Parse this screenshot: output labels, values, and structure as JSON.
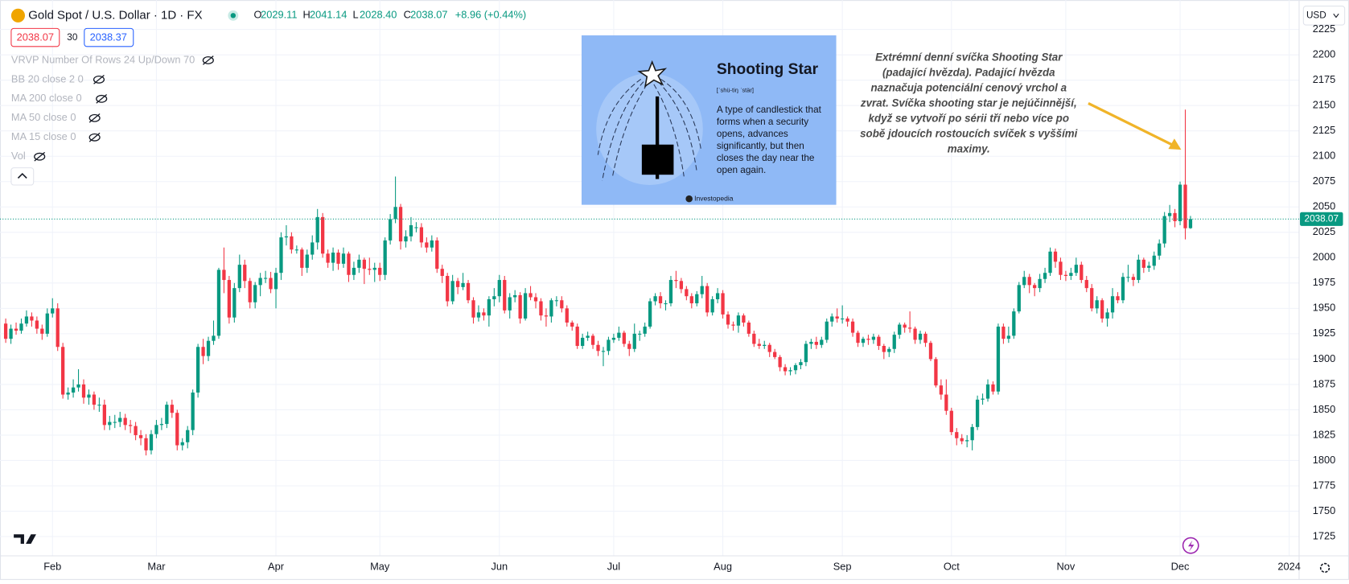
{
  "header": {
    "title": "Gold Spot / U.S. Dollar · 1D · FX",
    "legend": [
      {
        "key": "O",
        "value": "2029.11"
      },
      {
        "key": "H",
        "value": "2041.14"
      },
      {
        "key": "L",
        "value": "2028.40"
      },
      {
        "key": "C",
        "value": "2038.07"
      }
    ],
    "change": "+8.96 (+0.44%)"
  },
  "badges": {
    "sell": "2038.07",
    "spread": "30",
    "buy": "2038.37"
  },
  "indicators": [
    "VRVP Number Of Rows 24 Up/Down 70",
    "BB 20 close 2 0",
    "MA 200 close 0",
    "MA 50 close 0",
    "MA 15 close 0",
    "Vol"
  ],
  "currency": "USD",
  "card": {
    "title": "Shooting Star",
    "pronunciation": "[ˈshü-tiŋ ˈstär]",
    "description": [
      "A type of candlestick that",
      "forms when a security",
      "opens, advances",
      "significantly, but then",
      "closes the day near the",
      "open again."
    ],
    "source": "Investopedia"
  },
  "annotation": [
    "Extrémní denní svíčka Shooting Star",
    "(padající hvězda). Padající hvězda",
    "naznačuja potenciální cenový vrchol a",
    "zvrat. Svíčka shooting star je nejúčinnější,",
    "když se vytvoří po sérii tří nebo více po",
    "sobě jdoucích rostoucích svíček s vyššími",
    "maximy."
  ],
  "chart_data": {
    "type": "candlestick",
    "up_color": "#089981",
    "down_color": "#f23645",
    "grid": true,
    "ylim": [
      1706,
      2254
    ],
    "yticks": [
      1725,
      1750,
      1775,
      1800,
      1825,
      1850,
      1875,
      1900,
      1925,
      1950,
      1975,
      2000,
      2025,
      2050,
      2075,
      2100,
      2125,
      2150,
      2175,
      2200,
      2225
    ],
    "xlim": [
      -1.1,
      248.9
    ],
    "xticks": [
      {
        "value": 9,
        "label": "Feb"
      },
      {
        "value": 29,
        "label": "Mar"
      },
      {
        "value": 52,
        "label": "Apr"
      },
      {
        "value": 72,
        "label": "May"
      },
      {
        "value": 95,
        "label": "Jun"
      },
      {
        "value": 117,
        "label": "Jul"
      },
      {
        "value": 138,
        "label": "Aug"
      },
      {
        "value": 161,
        "label": "Sep"
      },
      {
        "value": 182,
        "label": "Oct"
      },
      {
        "value": 204,
        "label": "Nov"
      },
      {
        "value": 226,
        "label": "Dec"
      },
      {
        "value": 247,
        "label": "2024"
      }
    ],
    "ohlc": [
      [
        1935,
        1940,
        1916,
        1920
      ],
      [
        1920,
        1934,
        1915,
        1930
      ],
      [
        1930,
        1936,
        1924,
        1928
      ],
      [
        1928,
        1940,
        1925,
        1935
      ],
      [
        1935,
        1948,
        1932,
        1942
      ],
      [
        1942,
        1946,
        1932,
        1938
      ],
      [
        1938,
        1942,
        1925,
        1930
      ],
      [
        1930,
        1934,
        1919,
        1925
      ],
      [
        1925,
        1950,
        1922,
        1945
      ],
      [
        1945,
        1960,
        1941,
        1950
      ],
      [
        1950,
        1955,
        1908,
        1912
      ],
      [
        1912,
        1916,
        1861,
        1865
      ],
      [
        1865,
        1872,
        1860,
        1867
      ],
      [
        1867,
        1880,
        1862,
        1872
      ],
      [
        1872,
        1890,
        1868,
        1875
      ],
      [
        1875,
        1880,
        1856,
        1862
      ],
      [
        1862,
        1870,
        1855,
        1865
      ],
      [
        1865,
        1868,
        1850,
        1855
      ],
      [
        1855,
        1862,
        1848,
        1855
      ],
      [
        1855,
        1860,
        1830,
        1835
      ],
      [
        1835,
        1844,
        1830,
        1838
      ],
      [
        1838,
        1845,
        1832,
        1838
      ],
      [
        1838,
        1848,
        1833,
        1842
      ],
      [
        1842,
        1846,
        1830,
        1835
      ],
      [
        1835,
        1840,
        1827,
        1834
      ],
      [
        1834,
        1838,
        1820,
        1825
      ],
      [
        1825,
        1830,
        1815,
        1822
      ],
      [
        1822,
        1826,
        1805,
        1810
      ],
      [
        1810,
        1830,
        1806,
        1826
      ],
      [
        1826,
        1840,
        1822,
        1835
      ],
      [
        1835,
        1842,
        1830,
        1836
      ],
      [
        1836,
        1858,
        1832,
        1855
      ],
      [
        1855,
        1860,
        1842,
        1847
      ],
      [
        1847,
        1850,
        1810,
        1815
      ],
      [
        1815,
        1822,
        1810,
        1818
      ],
      [
        1818,
        1834,
        1812,
        1830
      ],
      [
        1830,
        1870,
        1825,
        1867
      ],
      [
        1867,
        1915,
        1862,
        1912
      ],
      [
        1912,
        1920,
        1895,
        1903
      ],
      [
        1903,
        1922,
        1898,
        1918
      ],
      [
        1918,
        1938,
        1914,
        1923
      ],
      [
        1923,
        1990,
        1920,
        1988
      ],
      [
        1988,
        2010,
        1965,
        1978
      ],
      [
        1978,
        1982,
        1935,
        1941
      ],
      [
        1941,
        1975,
        1936,
        1970
      ],
      [
        1970,
        2003,
        1966,
        1993
      ],
      [
        1993,
        1998,
        1970,
        1977
      ],
      [
        1977,
        1980,
        1950,
        1956
      ],
      [
        1956,
        1976,
        1950,
        1973
      ],
      [
        1973,
        1985,
        1962,
        1980
      ],
      [
        1980,
        1987,
        1975,
        1980
      ],
      [
        1980,
        1986,
        1965,
        1969
      ],
      [
        1969,
        1990,
        1950,
        1985
      ],
      [
        1985,
        2025,
        1978,
        2020
      ],
      [
        2020,
        2032,
        2012,
        2021
      ],
      [
        2021,
        2025,
        2004,
        2008
      ],
      [
        2008,
        2012,
        2004,
        2008
      ],
      [
        2008,
        2010,
        1982,
        1990
      ],
      [
        1990,
        2008,
        1985,
        2003
      ],
      [
        2003,
        2022,
        1998,
        2015
      ],
      [
        2015,
        2048,
        2008,
        2040
      ],
      [
        2040,
        2044,
        2000,
        2004
      ],
      [
        2004,
        2008,
        1990,
        1995
      ],
      [
        1995,
        2010,
        1987,
        2005
      ],
      [
        2005,
        2008,
        1988,
        1994
      ],
      [
        1994,
        2010,
        1990,
        2004
      ],
      [
        2004,
        2006,
        1976,
        1983
      ],
      [
        1983,
        1996,
        1978,
        1990
      ],
      [
        1990,
        2003,
        1985,
        1998
      ],
      [
        1998,
        2000,
        1974,
        1989
      ],
      [
        1989,
        2000,
        1983,
        1988
      ],
      [
        1988,
        1995,
        1976,
        1990
      ],
      [
        1990,
        1995,
        1977,
        1983
      ],
      [
        1983,
        2020,
        1978,
        2017
      ],
      [
        2017,
        2043,
        2013,
        2038
      ],
      [
        2038,
        2080,
        2034,
        2050
      ],
      [
        2050,
        2053,
        2008,
        2016
      ],
      [
        2016,
        2027,
        2010,
        2021
      ],
      [
        2021,
        2040,
        2016,
        2032
      ],
      [
        2030,
        2035,
        2025,
        2030
      ],
      [
        2030,
        2034,
        2010,
        2015
      ],
      [
        2015,
        2020,
        2005,
        2010
      ],
      [
        2010,
        2022,
        2006,
        2017
      ],
      [
        2017,
        2020,
        1985,
        1989
      ],
      [
        1989,
        1993,
        1975,
        1982
      ],
      [
        1982,
        1985,
        1952,
        1957
      ],
      [
        1957,
        1983,
        1954,
        1977
      ],
      [
        1977,
        1980,
        1964,
        1971
      ],
      [
        1971,
        1985,
        1968,
        1975
      ],
      [
        1975,
        1978,
        1955,
        1958
      ],
      [
        1958,
        1961,
        1935,
        1941
      ],
      [
        1941,
        1953,
        1937,
        1946
      ],
      [
        1946,
        1950,
        1938,
        1943
      ],
      [
        1943,
        1962,
        1932,
        1959
      ],
      [
        1959,
        1970,
        1952,
        1962
      ],
      [
        1962,
        1983,
        1956,
        1978
      ],
      [
        1978,
        1982,
        1945,
        1948
      ],
      [
        1948,
        1965,
        1940,
        1961
      ],
      [
        1961,
        1968,
        1956,
        1963
      ],
      [
        1963,
        1966,
        1935,
        1940
      ],
      [
        1940,
        1970,
        1938,
        1965
      ],
      [
        1965,
        1972,
        1958,
        1961
      ],
      [
        1961,
        1965,
        1950,
        1957
      ],
      [
        1957,
        1960,
        1938,
        1943
      ],
      [
        1943,
        1950,
        1932,
        1942
      ],
      [
        1942,
        1960,
        1936,
        1958
      ],
      [
        1958,
        1962,
        1952,
        1958
      ],
      [
        1958,
        1962,
        1946,
        1950
      ],
      [
        1950,
        1953,
        1932,
        1936
      ],
      [
        1936,
        1938,
        1928,
        1932
      ],
      [
        1932,
        1935,
        1910,
        1913
      ],
      [
        1913,
        1925,
        1910,
        1921
      ],
      [
        1921,
        1927,
        1918,
        1923
      ],
      [
        1923,
        1925,
        1910,
        1914
      ],
      [
        1914,
        1918,
        1903,
        1908
      ],
      [
        1908,
        1912,
        1893,
        1908
      ],
      [
        1908,
        1922,
        1904,
        1919
      ],
      [
        1919,
        1925,
        1916,
        1921
      ],
      [
        1921,
        1932,
        1918,
        1926
      ],
      [
        1926,
        1928,
        1912,
        1915
      ],
      [
        1915,
        1918,
        1903,
        1910
      ],
      [
        1910,
        1935,
        1907,
        1925
      ],
      [
        1925,
        1928,
        1918,
        1925
      ],
      [
        1925,
        1936,
        1922,
        1932
      ],
      [
        1932,
        1960,
        1930,
        1957
      ],
      [
        1957,
        1965,
        1953,
        1962
      ],
      [
        1962,
        1966,
        1950,
        1955
      ],
      [
        1955,
        1958,
        1948,
        1955
      ],
      [
        1955,
        1982,
        1952,
        1978
      ],
      [
        1978,
        1987,
        1970,
        1977
      ],
      [
        1977,
        1980,
        1965,
        1969
      ],
      [
        1969,
        1972,
        1958,
        1962
      ],
      [
        1962,
        1965,
        1950,
        1955
      ],
      [
        1955,
        1967,
        1952,
        1964
      ],
      [
        1964,
        1982,
        1960,
        1972
      ],
      [
        1972,
        1975,
        1942,
        1946
      ],
      [
        1946,
        1962,
        1943,
        1959
      ],
      [
        1959,
        1970,
        1955,
        1965
      ],
      [
        1965,
        1968,
        1940,
        1944
      ],
      [
        1944,
        1947,
        1930,
        1934
      ],
      [
        1934,
        1937,
        1928,
        1933
      ],
      [
        1933,
        1946,
        1926,
        1943
      ],
      [
        1943,
        1945,
        1932,
        1936
      ],
      [
        1936,
        1938,
        1922,
        1925
      ],
      [
        1925,
        1928,
        1912,
        1915
      ],
      [
        1915,
        1920,
        1910,
        1913
      ],
      [
        1913,
        1918,
        1910,
        1914
      ],
      [
        1914,
        1916,
        1902,
        1907
      ],
      [
        1907,
        1910,
        1900,
        1902
      ],
      [
        1902,
        1904,
        1888,
        1892
      ],
      [
        1892,
        1895,
        1884,
        1888
      ],
      [
        1888,
        1892,
        1884,
        1889
      ],
      [
        1889,
        1896,
        1885,
        1894
      ],
      [
        1894,
        1900,
        1890,
        1897
      ],
      [
        1897,
        1918,
        1893,
        1915
      ],
      [
        1915,
        1920,
        1910,
        1917
      ],
      [
        1917,
        1922,
        1910,
        1914
      ],
      [
        1914,
        1922,
        1911,
        1919
      ],
      [
        1919,
        1940,
        1916,
        1937
      ],
      [
        1937,
        1945,
        1932,
        1942
      ],
      [
        1942,
        1950,
        1936,
        1940
      ],
      [
        1940,
        1953,
        1935,
        1940
      ],
      [
        1940,
        1942,
        1932,
        1937
      ],
      [
        1937,
        1940,
        1922,
        1926
      ],
      [
        1926,
        1928,
        1912,
        1916
      ],
      [
        1916,
        1922,
        1912,
        1920
      ],
      [
        1920,
        1924,
        1914,
        1919
      ],
      [
        1919,
        1925,
        1915,
        1922
      ],
      [
        1922,
        1924,
        1909,
        1913
      ],
      [
        1913,
        1915,
        1900,
        1907
      ],
      [
        1907,
        1912,
        1902,
        1910
      ],
      [
        1910,
        1927,
        1906,
        1924
      ],
      [
        1924,
        1936,
        1920,
        1934
      ],
      [
        1934,
        1936,
        1926,
        1931
      ],
      [
        1931,
        1947,
        1926,
        1930
      ],
      [
        1930,
        1932,
        1915,
        1919
      ],
      [
        1919,
        1928,
        1915,
        1925
      ],
      [
        1925,
        1927,
        1912,
        1916
      ],
      [
        1916,
        1918,
        1898,
        1900
      ],
      [
        1900,
        1902,
        1872,
        1874
      ],
      [
        1874,
        1880,
        1860,
        1865
      ],
      [
        1865,
        1880,
        1845,
        1849
      ],
      [
        1849,
        1852,
        1825,
        1828
      ],
      [
        1828,
        1832,
        1815,
        1822
      ],
      [
        1822,
        1826,
        1816,
        1819
      ],
      [
        1819,
        1825,
        1813,
        1820
      ],
      [
        1820,
        1836,
        1810,
        1833
      ],
      [
        1833,
        1864,
        1830,
        1860
      ],
      [
        1860,
        1866,
        1855,
        1861
      ],
      [
        1861,
        1880,
        1858,
        1875
      ],
      [
        1875,
        1878,
        1865,
        1868
      ],
      [
        1868,
        1935,
        1865,
        1932
      ],
      [
        1932,
        1935,
        1915,
        1920
      ],
      [
        1920,
        1932,
        1916,
        1923
      ],
      [
        1923,
        1950,
        1920,
        1947
      ],
      [
        1947,
        1976,
        1945,
        1973
      ],
      [
        1973,
        1987,
        1970,
        1981
      ],
      [
        1981,
        1984,
        1965,
        1973
      ],
      [
        1973,
        1975,
        1962,
        1970
      ],
      [
        1970,
        1984,
        1966,
        1979
      ],
      [
        1979,
        1990,
        1975,
        1985
      ],
      [
        1985,
        2010,
        1982,
        2006
      ],
      [
        2006,
        2009,
        1990,
        1996
      ],
      [
        1996,
        2000,
        1978,
        1983
      ],
      [
        1983,
        1987,
        1977,
        1982
      ],
      [
        1982,
        1990,
        1978,
        1985
      ],
      [
        1985,
        2000,
        1982,
        1993
      ],
      [
        1993,
        1996,
        1975,
        1978
      ],
      [
        1978,
        1982,
        1966,
        1970
      ],
      [
        1970,
        1974,
        1947,
        1950
      ],
      [
        1950,
        1962,
        1945,
        1958
      ],
      [
        1958,
        1960,
        1936,
        1940
      ],
      [
        1940,
        1950,
        1932,
        1946
      ],
      [
        1946,
        1970,
        1940,
        1962
      ],
      [
        1962,
        1966,
        1955,
        1958
      ],
      [
        1958,
        1985,
        1955,
        1981
      ],
      [
        1981,
        1993,
        1976,
        1981
      ],
      [
        1981,
        1984,
        1972,
        1978
      ],
      [
        1978,
        2003,
        1975,
        1998
      ],
      [
        1998,
        2000,
        1985,
        1990
      ],
      [
        1990,
        1996,
        1986,
        1992
      ],
      [
        1992,
        2006,
        1988,
        2002
      ],
      [
        2002,
        2018,
        1998,
        2014
      ],
      [
        2014,
        2045,
        2010,
        2041
      ],
      [
        2041,
        2052,
        2035,
        2044
      ],
      [
        2044,
        2048,
        2030,
        2036
      ],
      [
        2036,
        2075,
        2032,
        2072
      ],
      [
        2072,
        2146,
        2018,
        2029
      ],
      [
        2029.11,
        2041.14,
        2028.4,
        2038.07
      ]
    ]
  }
}
